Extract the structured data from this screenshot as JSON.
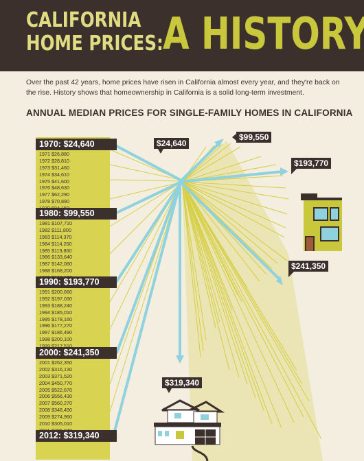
{
  "header": {
    "line1": "CALIFORNIA",
    "line2": "HOME PRICES:",
    "big": "A HISTORY"
  },
  "intro": "Over the past 42 years, home prices have risen in California almost every year, and they're back on the rise. History shows that homeownership in California is a solid long-term investment.",
  "subhead": "ANNUAL MEDIAN PRICES FOR SINGLE-FAMILY HOMES IN CALIFORNIA",
  "decades": [
    {
      "label": "1970: $24,640"
    },
    {
      "label": "1980: $99,550"
    },
    {
      "label": "1990: $193,770"
    },
    {
      "label": "2000: $241,350"
    },
    {
      "label": "2012: $319,340"
    }
  ],
  "years": [
    [
      {
        "year": "1971",
        "price": "$26,880"
      },
      {
        "year": "1972",
        "price": "$28,810"
      },
      {
        "year": "1973",
        "price": "$31,460"
      },
      {
        "year": "1974",
        "price": "$34,610"
      },
      {
        "year": "1975",
        "price": "$41,600"
      },
      {
        "year": "1976",
        "price": "$48,630"
      },
      {
        "year": "1977",
        "price": "$62,290"
      },
      {
        "year": "1978",
        "price": "$70,890"
      },
      {
        "year": "1979",
        "price": "$84,150"
      }
    ],
    [
      {
        "year": "1981",
        "price": "$107,710"
      },
      {
        "year": "1982",
        "price": "$111,800"
      },
      {
        "year": "1983",
        "price": "$114,370"
      },
      {
        "year": "1984",
        "price": "$114,260"
      },
      {
        "year": "1985",
        "price": "$119,860"
      },
      {
        "year": "1986",
        "price": "$133,640"
      },
      {
        "year": "1987",
        "price": "$142,060"
      },
      {
        "year": "1988",
        "price": "$168,200"
      },
      {
        "year": "1989",
        "price": "$196,120"
      }
    ],
    [
      {
        "year": "1991",
        "price": "$200,660"
      },
      {
        "year": "1992",
        "price": "$197,030"
      },
      {
        "year": "1993",
        "price": "$188,240"
      },
      {
        "year": "1994",
        "price": "$185,010"
      },
      {
        "year": "1995",
        "price": "$178,160"
      },
      {
        "year": "1996",
        "price": "$177,270"
      },
      {
        "year": "1997",
        "price": "$186,490"
      },
      {
        "year": "1998",
        "price": "$200,100"
      },
      {
        "year": "1999",
        "price": "$217,510"
      }
    ],
    [
      {
        "year": "2001",
        "price": "$262,350"
      },
      {
        "year": "2002",
        "price": "$316,130"
      },
      {
        "year": "2003",
        "price": "$371,520"
      },
      {
        "year": "2004",
        "price": "$450,770"
      },
      {
        "year": "2005",
        "price": "$522,670"
      },
      {
        "year": "2006",
        "price": "$556,430"
      },
      {
        "year": "2007",
        "price": "$560,270"
      },
      {
        "year": "2008",
        "price": "$348,490"
      },
      {
        "year": "2009",
        "price": "$274,960"
      },
      {
        "year": "2010",
        "price": "$305,010"
      },
      {
        "year": "2011",
        "price": "$286,040"
      }
    ]
  ],
  "callouts": {
    "c1970": "$24,640",
    "c1980": "$99,550",
    "c1990": "$193,770",
    "c2000": "$241,350",
    "c2012": "$319,340"
  },
  "colors": {
    "dark": "#3b302c",
    "yellow": "#d8d350",
    "title_yellow": "#e0dc83",
    "blue": "#8fd1dd",
    "beige": "#f3eedf",
    "beam": "#ebe5b5"
  }
}
